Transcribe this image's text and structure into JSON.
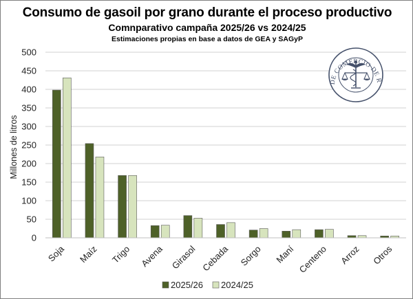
{
  "chart_data": {
    "type": "bar",
    "title": "Consumo de gasoil por grano durante el proceso productivo",
    "subtitle": "Comnparativo campaña 2025/26 vs 2024/25",
    "note": "Estimaciones propias en base a datos de GEA y SAGyP",
    "xlabel": "",
    "ylabel": "Millones de litros",
    "ylim": [
      0,
      500
    ],
    "yticks": [
      "0",
      "50",
      "100",
      "150",
      "200",
      "250",
      "300",
      "350",
      "400",
      "450",
      "500"
    ],
    "categories": [
      "Soja",
      "Maíz",
      "Trigo",
      "Avena",
      "Girasol",
      "Cebada",
      "Sorgo",
      "Maní",
      "Centeno",
      "Arroz",
      "Otros"
    ],
    "series": [
      {
        "name": "2025/26",
        "color": "#4e6128",
        "values": [
          398,
          254,
          168,
          33,
          60,
          36,
          21,
          18,
          22,
          6,
          5
        ]
      },
      {
        "name": "2024/25",
        "color": "#d7e4bd",
        "values": [
          431,
          218,
          168,
          34,
          53,
          41,
          25,
          22,
          23,
          6,
          5
        ]
      }
    ],
    "grid": true,
    "legend_position": "bottom"
  },
  "logo": {
    "text": "BOLSA DE COMERCIO DE ROSARIO",
    "icon": "caduceus-scale-icon",
    "color": "#44506a"
  }
}
